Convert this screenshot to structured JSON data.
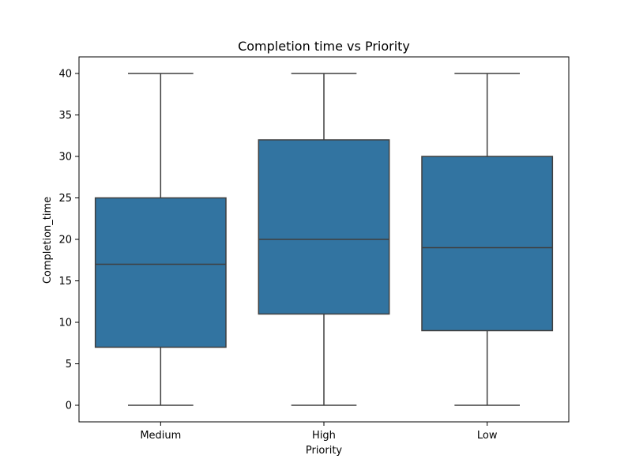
{
  "chart_data": {
    "type": "box",
    "title": "Completion time vs Priority",
    "xlabel": "Priority",
    "ylabel": "Completion_time",
    "categories": [
      "Medium",
      "High",
      "Low"
    ],
    "boxes": [
      {
        "category": "Medium",
        "min": 0,
        "q1": 7,
        "median": 17,
        "q3": 25,
        "max": 40
      },
      {
        "category": "High",
        "min": 0,
        "q1": 11,
        "median": 20,
        "q3": 32,
        "max": 40
      },
      {
        "category": "Low",
        "min": 0,
        "q1": 9,
        "median": 19,
        "q3": 30,
        "max": 40
      }
    ],
    "ylim": [
      -2,
      42
    ],
    "yticks": [
      0,
      5,
      10,
      15,
      20,
      25,
      30,
      35,
      40
    ],
    "grid": false,
    "colors": {
      "box_fill": "#3274a1",
      "box_line": "#3f3f3f",
      "axis": "#000000"
    }
  }
}
